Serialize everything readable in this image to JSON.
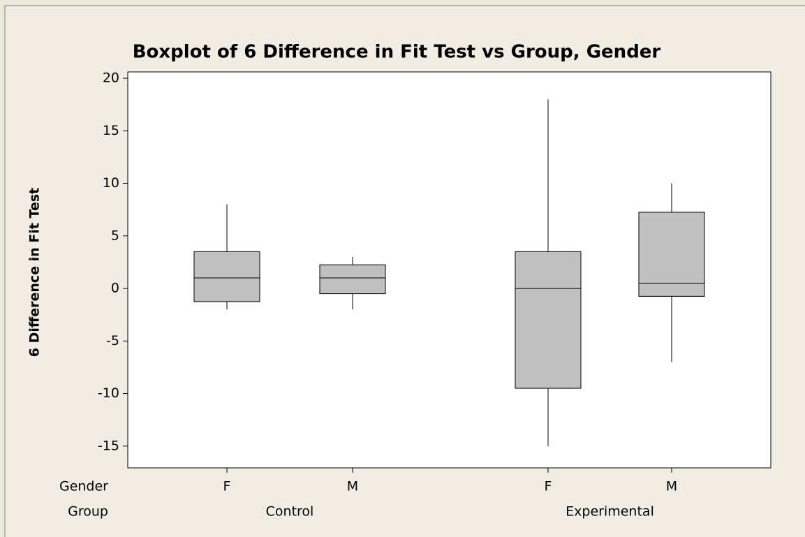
{
  "chart_data": {
    "type": "box",
    "title": "Boxplot of 6 Difference in Fit Test vs Group, Gender",
    "y_label": "6 Difference in Fit Test",
    "gender_label": "Gender",
    "group_label": "Group",
    "categories": [
      "F",
      "M",
      "F",
      "M"
    ],
    "groups": [
      "Control",
      "Experimental"
    ],
    "color": "#c0c0c0",
    "boxes": [
      {
        "whisker_low": -2,
        "q1": -1.25,
        "median": 1,
        "q3": 3.5,
        "whisker_high": 8
      },
      {
        "whisker_low": -2,
        "q1": -0.5,
        "median": 1,
        "q3": 2.25,
        "whisker_high": 3
      },
      {
        "whisker_low": -15,
        "q1": -9.5,
        "median": 0,
        "q3": 3.5,
        "whisker_high": 18
      },
      {
        "whisker_low": -7,
        "q1": -0.75,
        "median": 0.5,
        "q3": 7.25,
        "whisker_high": 10
      }
    ],
    "ylim": [
      -17.07,
      20.6
    ],
    "yticks": [
      -15,
      -10,
      -5,
      0,
      5,
      10,
      15,
      20
    ]
  }
}
